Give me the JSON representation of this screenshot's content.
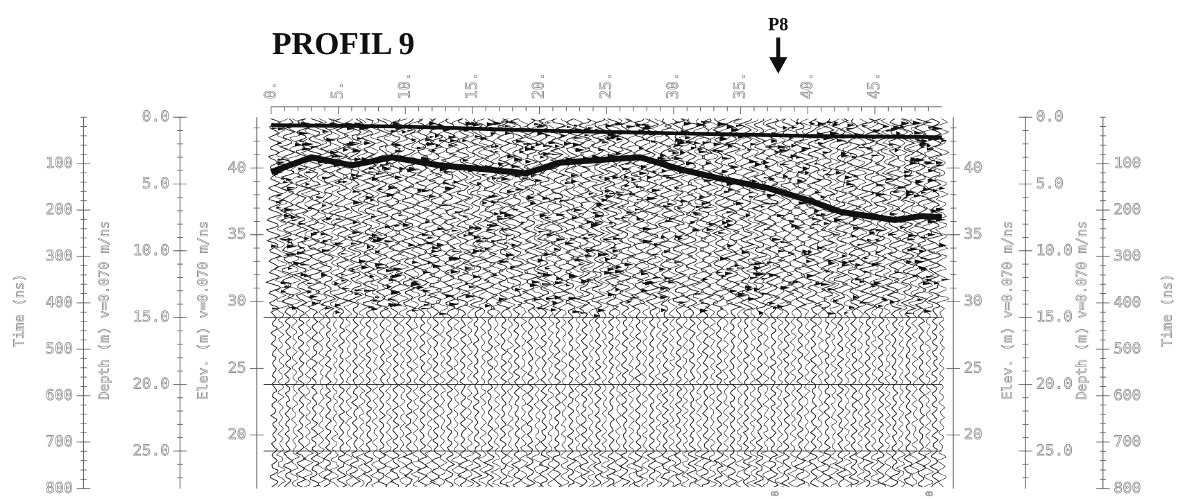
{
  "chart_data": {
    "type": "radargram",
    "title": "PROFIL 9",
    "marker": {
      "label": "P8",
      "x": 37.8
    },
    "bottom_labels": [
      {
        "label": "8",
        "x": 37.6
      },
      {
        "label": "0",
        "x": 49.1
      }
    ],
    "xlim": [
      0,
      50
    ],
    "xticks": [
      {
        "value": 0,
        "label": "0."
      },
      {
        "value": 5,
        "label": "5."
      },
      {
        "value": 10,
        "label": "10."
      },
      {
        "value": 15,
        "label": "15."
      },
      {
        "value": 20,
        "label": "20."
      },
      {
        "value": 25,
        "label": "25."
      },
      {
        "value": 30,
        "label": "30."
      },
      {
        "value": 35,
        "label": "35."
      },
      {
        "value": 40,
        "label": "40."
      },
      {
        "value": 45,
        "label": "45."
      }
    ],
    "time_axis": {
      "label": "Time (ns)",
      "lim": [
        0,
        800
      ],
      "ticks": [
        100,
        200,
        300,
        400,
        500,
        600,
        700,
        800
      ]
    },
    "depth_axis": {
      "label": "Depth (m) v=0.070 m/ns",
      "lim": [
        0,
        27.8
      ],
      "ticks": [
        {
          "value": 0,
          "label": "0.0"
        },
        {
          "value": 5,
          "label": "5.0"
        },
        {
          "value": 10,
          "label": "10.0"
        },
        {
          "value": 15,
          "label": "15.0"
        },
        {
          "value": 20,
          "label": "20.0"
        },
        {
          "value": 25,
          "label": "25.0"
        }
      ]
    },
    "elev_axis": {
      "label": "Elev. (m) v=0.070 m/ns",
      "lim": [
        16,
        43.8
      ],
      "ticks": [
        40,
        35,
        30,
        25,
        20
      ]
    },
    "depth_lines": [
      15,
      20,
      25
    ],
    "horizons": [
      {
        "color": "#111111",
        "x": [
          0,
          10,
          20,
          30,
          40,
          50
        ],
        "values": [
          43.2,
          43.1,
          42.8,
          42.6,
          42.4,
          42.3
        ]
      },
      {
        "color": "#111111",
        "x": [
          0,
          3,
          6,
          9,
          12.5,
          16,
          19,
          21.5,
          24.5,
          27.5,
          30.5,
          33.5,
          37,
          40,
          42.5,
          46.5,
          48.5,
          50
        ],
        "values": [
          39.7,
          40.8,
          40.2,
          40.8,
          40.2,
          39.9,
          39.6,
          40.4,
          40.6,
          40.8,
          39.9,
          39.2,
          38.5,
          37.6,
          36.7,
          36.1,
          36.4,
          36.3
        ]
      }
    ]
  }
}
